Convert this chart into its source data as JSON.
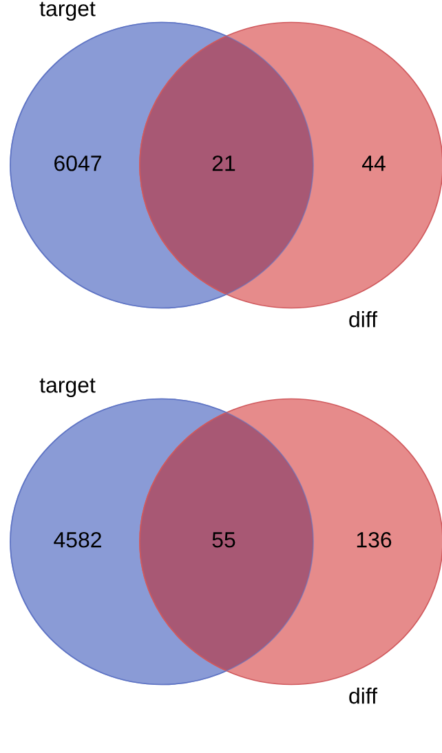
{
  "chart_data": [
    {
      "type": "other",
      "categories": [
        "target",
        null,
        "diff"
      ],
      "values": [
        6047,
        21,
        44
      ],
      "data_labels": true,
      "colors": [
        "#8a9bd6",
        "#a85874",
        "#e68b8b"
      ]
    },
    {
      "type": "other",
      "categories": [
        "target",
        null,
        "diff"
      ],
      "values": [
        4582,
        55,
        136
      ],
      "data_labels": true,
      "colors": [
        "#8a9bd6",
        "#a85874",
        "#e68b8b"
      ]
    }
  ]
}
